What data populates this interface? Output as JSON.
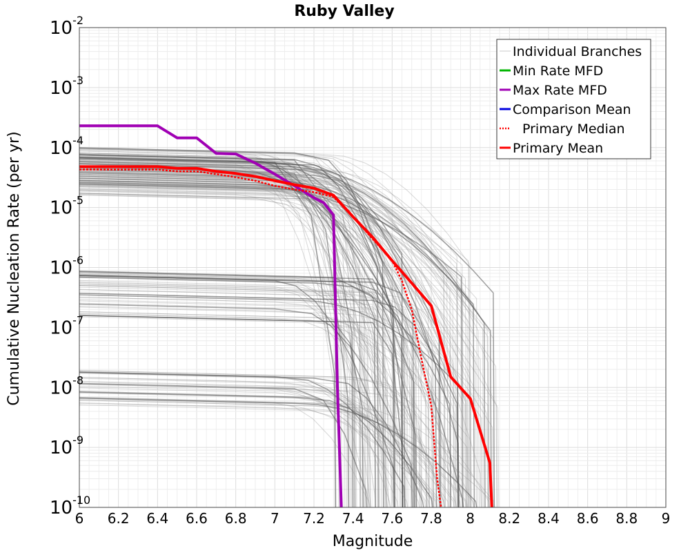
{
  "chart_data": {
    "type": "line",
    "title": "Ruby Valley",
    "xlabel": "Magnitude",
    "ylabel": "Cumulative Nucleation Rate (per yr)",
    "xlim": [
      6,
      9
    ],
    "ylim": [
      1e-10,
      0.01
    ],
    "yscale": "log",
    "grid": true,
    "legend_position": "top-right",
    "x_ticks": [
      "6",
      "6.2",
      "6.4",
      "6.6",
      "6.8",
      "7",
      "7.2",
      "7.4",
      "7.6",
      "7.8",
      "8",
      "8.2",
      "8.4",
      "8.6",
      "8.8",
      "9"
    ],
    "y_ticks": [
      {
        "base": "10",
        "exp": "-2",
        "value": 0.01
      },
      {
        "base": "10",
        "exp": "-3",
        "value": 0.001
      },
      {
        "base": "10",
        "exp": "-4",
        "value": 0.0001
      },
      {
        "base": "10",
        "exp": "-5",
        "value": 1e-05
      },
      {
        "base": "10",
        "exp": "-6",
        "value": 1e-06
      },
      {
        "base": "10",
        "exp": "-7",
        "value": 1e-07
      },
      {
        "base": "10",
        "exp": "-8",
        "value": 1e-08
      },
      {
        "base": "10",
        "exp": "-9",
        "value": 1e-09
      },
      {
        "base": "10",
        "exp": "-10",
        "value": 1e-10
      }
    ],
    "legend": [
      {
        "label": "Individual Branches",
        "color": "#c8c8c8",
        "style": "solid"
      },
      {
        "label": "Min Rate MFD",
        "color": "#00b400",
        "style": "solid"
      },
      {
        "label": "Max Rate MFD",
        "color": "#a000b4",
        "style": "solid"
      },
      {
        "label": "Comparison Mean",
        "color": "#0000e0",
        "style": "solid"
      },
      {
        "label": "Primary Median",
        "color": "#ff0000",
        "style": "dotted"
      },
      {
        "label": "Primary Mean",
        "color": "#ff0000",
        "style": "solid"
      }
    ],
    "branch_groups": [
      {
        "plateau_range": [
          1.6e-05,
          0.0001
        ],
        "drop_start": [
          6.8,
          7.3
        ],
        "max_mag": [
          7.3,
          8.15
        ],
        "count": 120
      },
      {
        "plateau_range": [
          1.5e-07,
          9e-07
        ],
        "drop_start": [
          7.0,
          7.6
        ],
        "max_mag": [
          7.35,
          8.15
        ],
        "count": 45
      },
      {
        "plateau_range": [
          5e-09,
          2e-08
        ],
        "drop_start": [
          6.9,
          7.5
        ],
        "max_mag": [
          7.45,
          8.15
        ],
        "count": 35
      }
    ],
    "series": [
      {
        "name": "Max Rate MFD",
        "color": "#a000b4",
        "x": [
          6.0,
          6.4,
          6.5,
          6.6,
          6.7,
          6.8,
          6.9,
          7.0,
          7.1,
          7.2,
          7.25,
          7.3,
          7.32,
          7.34
        ],
        "y": [
          0.00023,
          0.00023,
          0.000145,
          0.000145,
          8e-05,
          7.8e-05,
          5.5e-05,
          3.6e-05,
          2.3e-05,
          1.45e-05,
          1.2e-05,
          7.5e-06,
          1e-08,
          1e-10
        ]
      },
      {
        "name": "Primary Median",
        "color": "#ff0000",
        "dash": "dotted",
        "x": [
          6.0,
          6.4,
          6.5,
          6.6,
          6.7,
          6.8,
          6.9,
          7.0,
          7.1,
          7.2,
          7.3,
          7.4,
          7.5,
          7.6,
          7.65,
          7.7,
          7.75,
          7.8,
          7.83,
          7.85
        ],
        "y": [
          4.3e-05,
          4.3e-05,
          4e-05,
          4e-05,
          3.6e-05,
          3.2e-05,
          2.8e-05,
          2.3e-05,
          2e-05,
          1.8e-05,
          1.5e-05,
          7e-06,
          3e-06,
          1.3e-06,
          6e-07,
          2e-07,
          3e-08,
          5e-09,
          3e-10,
          1e-10
        ]
      },
      {
        "name": "Primary Mean",
        "color": "#ff0000",
        "x": [
          6.0,
          6.4,
          6.5,
          6.6,
          6.7,
          6.8,
          6.9,
          7.0,
          7.1,
          7.2,
          7.3,
          7.4,
          7.5,
          7.6,
          7.7,
          7.8,
          7.9,
          8.0,
          8.1,
          8.11
        ],
        "y": [
          4.8e-05,
          4.8e-05,
          4.5e-05,
          4.5e-05,
          4e-05,
          3.7e-05,
          3.3e-05,
          2.8e-05,
          2.4e-05,
          2.1e-05,
          1.6e-05,
          7e-06,
          3.2e-06,
          1.3e-06,
          5.5e-07,
          2.3e-07,
          1.5e-08,
          6.5e-09,
          5.5e-10,
          1e-10
        ]
      }
    ]
  }
}
